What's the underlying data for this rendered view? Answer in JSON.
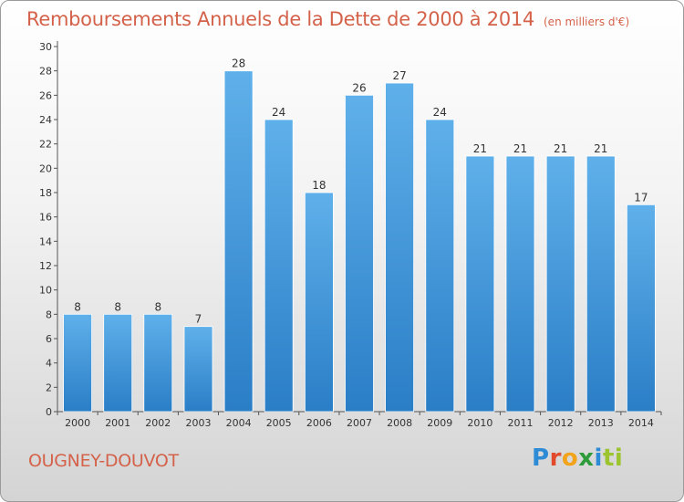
{
  "chart_data": {
    "type": "bar",
    "title": "Remboursements Annuels de la Dette de 2000 à 2014",
    "unit": "(en milliers d'€)",
    "categories": [
      "2000",
      "2001",
      "2002",
      "2003",
      "2004",
      "2005",
      "2006",
      "2007",
      "2008",
      "2009",
      "2010",
      "2011",
      "2012",
      "2013",
      "2014"
    ],
    "values": [
      8,
      8,
      8,
      7,
      28,
      24,
      18,
      26,
      27,
      24,
      21,
      21,
      21,
      21,
      17
    ],
    "ylim": [
      0,
      30
    ],
    "yticks": [
      0,
      2,
      4,
      6,
      8,
      10,
      12,
      14,
      16,
      18,
      20,
      22,
      24,
      26,
      28,
      30
    ],
    "xlabel": "",
    "ylabel": "",
    "grid": false,
    "legend": "none"
  },
  "location": "OUGNEY-DOUVOT",
  "logo": {
    "text": "Proxiti",
    "letters": [
      "P",
      "r",
      "o",
      "x",
      "i",
      "ti"
    ]
  },
  "colors": {
    "title": "#d4624a",
    "bar_light": "#5fb0ea",
    "bar_dark": "#2a7ec6",
    "axis": "#333333"
  }
}
